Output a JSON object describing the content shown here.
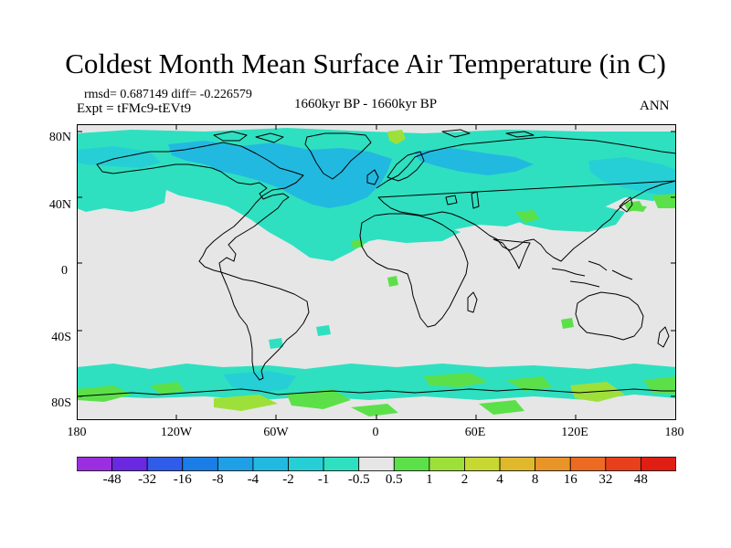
{
  "title": "Coldest Month Mean Surface Air Temperature (in C)",
  "stats": "rmsd= 0.687149 diff= -0.226579",
  "experiment": "Expt = tFMc9-tEVt9",
  "period": "1660kyr BP - 1660kyr BP",
  "season": "ANN",
  "lat_labels": [
    "80N",
    "40N",
    "0",
    "40S",
    "80S"
  ],
  "lon_labels": [
    "180",
    "120W",
    "60W",
    "0",
    "60E",
    "120E",
    "180"
  ],
  "colorbar": {
    "levels": [
      "-48",
      "-32",
      "-16",
      "-8",
      "-4",
      "-2",
      "-1",
      "-0.5",
      "0.5",
      "1",
      "2",
      "4",
      "8",
      "16",
      "32",
      "48"
    ],
    "colors": [
      "#9b2fe0",
      "#6a28e0",
      "#2f5ce8",
      "#1a7ee6",
      "#1e9fe6",
      "#22b9e0",
      "#26cfd6",
      "#2ee0c0",
      "#e6e6e6",
      "#5ce04a",
      "#9ee03a",
      "#c8d832",
      "#e0b82c",
      "#e89428",
      "#ec6a22",
      "#e8401c",
      "#e01e14"
    ]
  },
  "map_colors": {
    "background": "#e6e6e6",
    "neg_light": "#2ee0c0",
    "neg_mid": "#26cfd6",
    "neg_strong": "#22b9e0",
    "pos_light": "#5ce04a",
    "pos_mid": "#9ee03a"
  }
}
